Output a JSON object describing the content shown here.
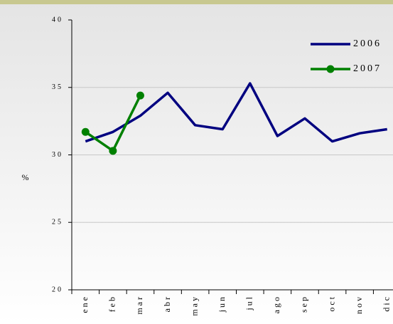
{
  "chart_data": {
    "type": "line",
    "categories": [
      "ene",
      "feb",
      "mar",
      "abr",
      "may",
      "jun",
      "jul",
      "ago",
      "sep",
      "oct",
      "nov",
      "dic"
    ],
    "series": [
      {
        "name": "2006",
        "color": "#000080",
        "values": [
          31.0,
          31.7,
          32.9,
          34.6,
          32.2,
          31.9,
          35.3,
          31.4,
          32.7,
          31.0,
          31.6,
          31.9
        ]
      },
      {
        "name": "2007",
        "color": "#008000",
        "values": [
          31.7,
          30.3,
          34.4,
          null,
          null,
          null,
          null,
          null,
          null,
          null,
          null,
          null
        ]
      }
    ],
    "y_label": "%",
    "ylim": [
      20,
      40
    ],
    "yticks": [
      20,
      25,
      30,
      35,
      40
    ],
    "grid": true,
    "legend": "top-right"
  }
}
